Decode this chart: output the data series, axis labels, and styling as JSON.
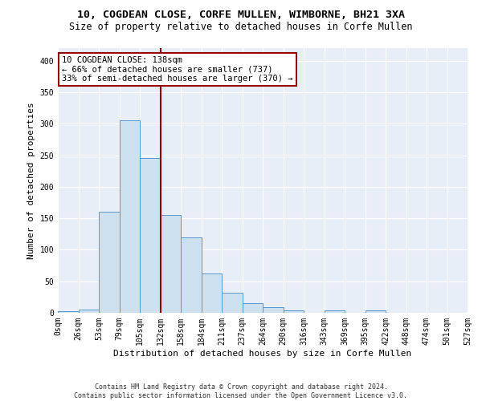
{
  "title_line1": "10, COGDEAN CLOSE, CORFE MULLEN, WIMBORNE, BH21 3XA",
  "title_line2": "Size of property relative to detached houses in Corfe Mullen",
  "xlabel": "Distribution of detached houses by size in Corfe Mullen",
  "ylabel": "Number of detached properties",
  "footnote": "Contains HM Land Registry data © Crown copyright and database right 2024.\nContains public sector information licensed under the Open Government Licence v3.0.",
  "bin_labels": [
    "0sqm",
    "26sqm",
    "53sqm",
    "79sqm",
    "105sqm",
    "132sqm",
    "158sqm",
    "184sqm",
    "211sqm",
    "237sqm",
    "264sqm",
    "290sqm",
    "316sqm",
    "343sqm",
    "369sqm",
    "395sqm",
    "422sqm",
    "448sqm",
    "474sqm",
    "501sqm",
    "527sqm"
  ],
  "bar_values": [
    3,
    5,
    160,
    305,
    245,
    155,
    120,
    62,
    32,
    15,
    9,
    4,
    0,
    4,
    0,
    4,
    0,
    0,
    0,
    0
  ],
  "bar_color": "#cce0f0",
  "bar_edge_color": "#5599cc",
  "vline_x": 5,
  "vline_color": "#990000",
  "annotation_text": "10 COGDEAN CLOSE: 138sqm\n← 66% of detached houses are smaller (737)\n33% of semi-detached houses are larger (370) →",
  "annotation_box_color": "#ffffff",
  "annotation_box_edge": "#990000",
  "ylim": [
    0,
    420
  ],
  "yticks": [
    0,
    50,
    100,
    150,
    200,
    250,
    300,
    350,
    400
  ],
  "background_color": "#e8eef8",
  "grid_color": "#ffffff",
  "title_fontsize": 9.5,
  "subtitle_fontsize": 8.5,
  "axis_label_fontsize": 8,
  "tick_fontsize": 7,
  "annotation_fontsize": 7.5,
  "footnote_fontsize": 6
}
